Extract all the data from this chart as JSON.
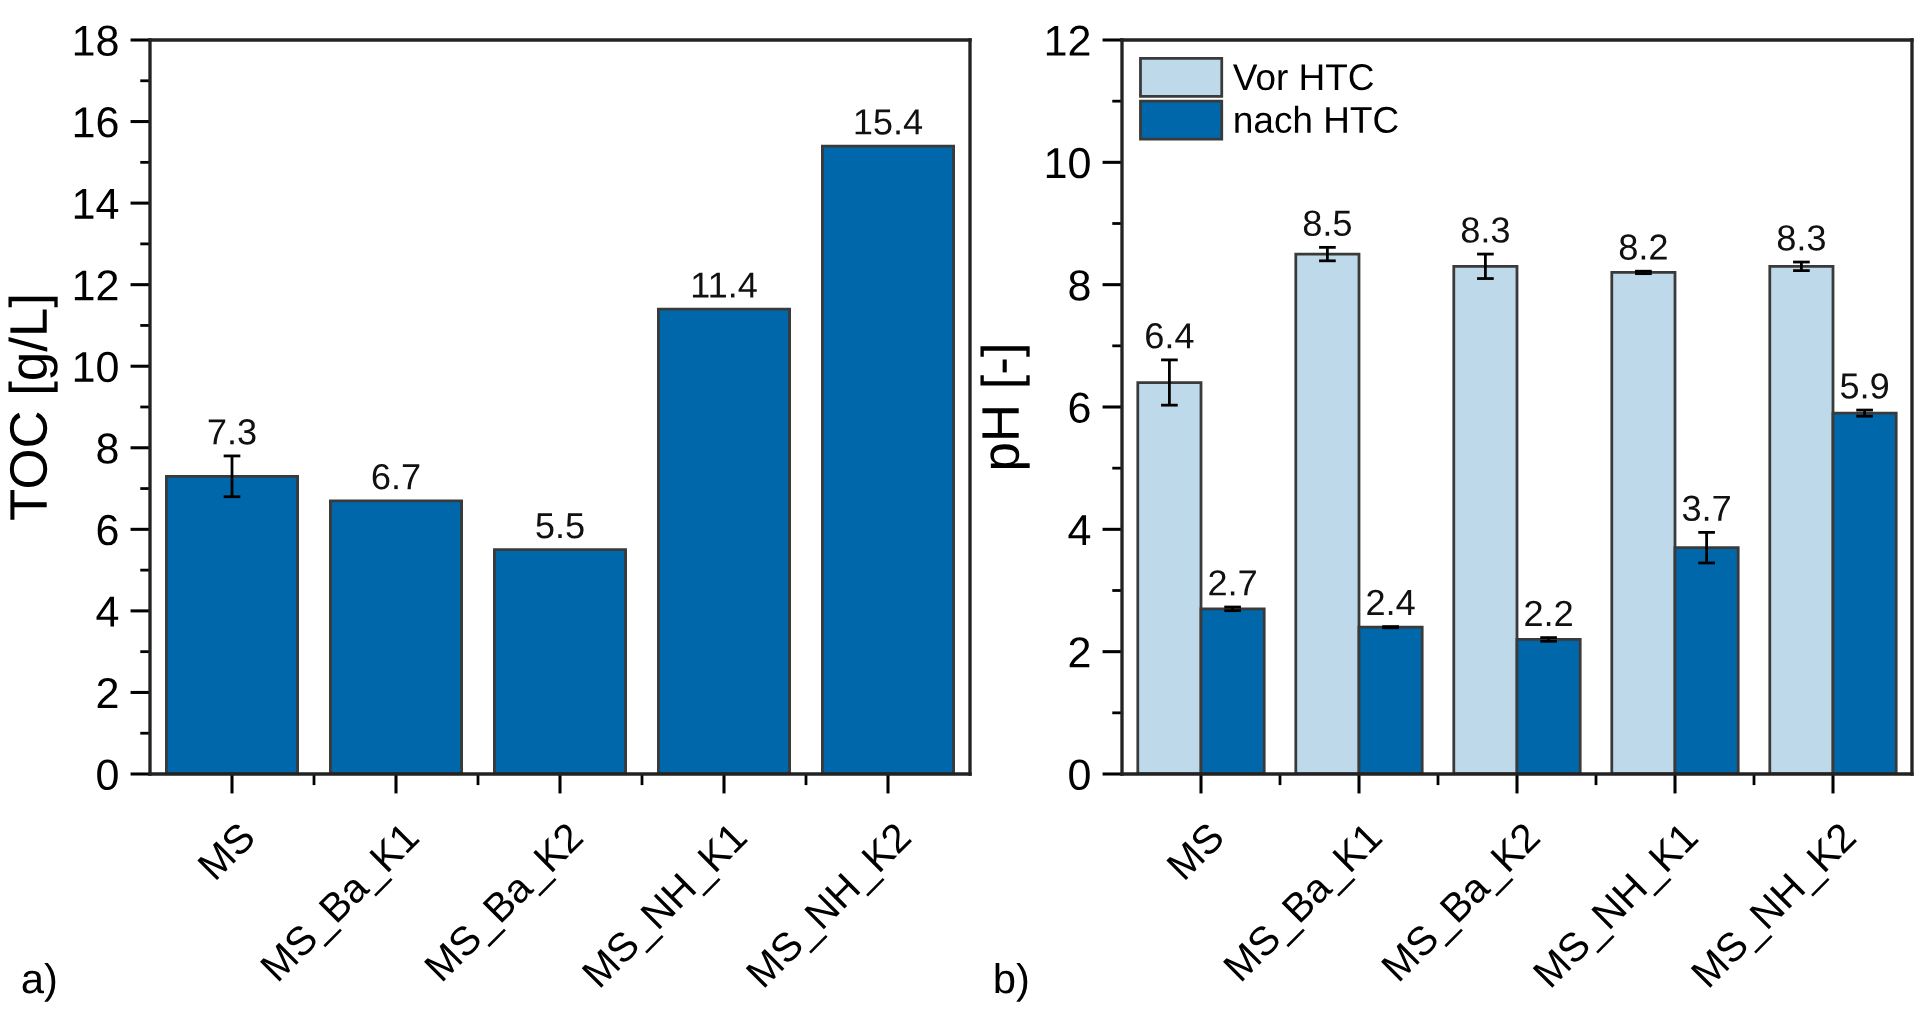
{
  "chart_data": [
    {
      "type": "bar",
      "categories": [
        "MS",
        "MS_Ba_K1",
        "MS_Ba_K2",
        "MS_NH_K1",
        "MS_NH_K2"
      ],
      "values": [
        7.3,
        6.7,
        5.5,
        11.4,
        15.4
      ],
      "errors": [
        0.5,
        null,
        null,
        null,
        null
      ],
      "color": "#0068aa",
      "ylabel": "TOC [g/L]",
      "ylim": [
        0,
        18
      ],
      "yticks": [
        0,
        2,
        4,
        6,
        8,
        10,
        12,
        14,
        16,
        18
      ],
      "data_labels": true,
      "annotations": [
        "a)"
      ]
    },
    {
      "type": "bar",
      "categories": [
        "MS",
        "MS_Ba_K1",
        "MS_Ba_K2",
        "MS_NH_K1",
        "MS_NH_K2"
      ],
      "series": [
        {
          "name": "Vor HTC",
          "color": "#bedaea",
          "values": [
            6.4,
            8.5,
            8.3,
            8.2,
            8.3
          ],
          "errors": [
            0.37,
            0.11,
            0.2,
            0.02,
            0.07
          ]
        },
        {
          "name": "nach HTC",
          "color": "#0068aa",
          "values": [
            2.7,
            2.4,
            2.2,
            3.7,
            5.9
          ],
          "errors": [
            0.03,
            0.01,
            0.03,
            0.25,
            0.05
          ]
        }
      ],
      "ylabel": "pH [-]",
      "ylim": [
        0,
        12
      ],
      "yticks": [
        0,
        2,
        4,
        6,
        8,
        10,
        12
      ],
      "legend": "top left",
      "data_labels": true,
      "annotations": [
        "b)"
      ]
    }
  ]
}
